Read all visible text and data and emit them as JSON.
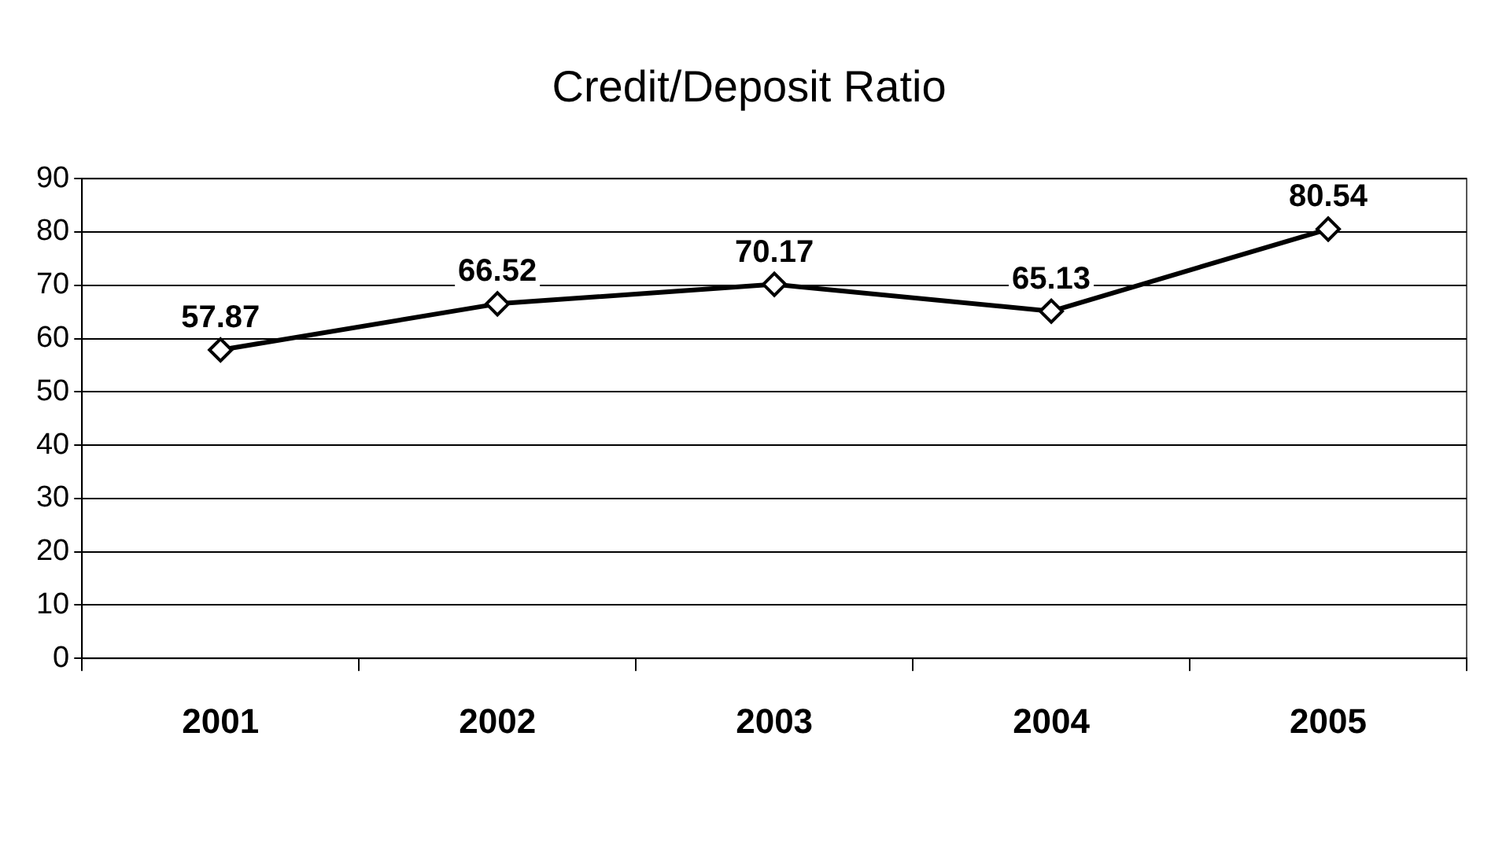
{
  "chart_data": {
    "type": "line",
    "title": "Credit/Deposit Ratio",
    "categories": [
      "2001",
      "2002",
      "2003",
      "2004",
      "2005"
    ],
    "series": [
      {
        "color": "#000000",
        "values": [
          57.87,
          66.52,
          70.17,
          65.13,
          80.54
        ]
      }
    ],
    "ylim": [
      0,
      90
    ],
    "yticks": [
      0,
      10,
      20,
      30,
      40,
      50,
      60,
      70,
      80,
      90
    ],
    "grid": "y",
    "marker": "diamond",
    "line_style": "solid",
    "legend": false,
    "data_labels": true
  }
}
